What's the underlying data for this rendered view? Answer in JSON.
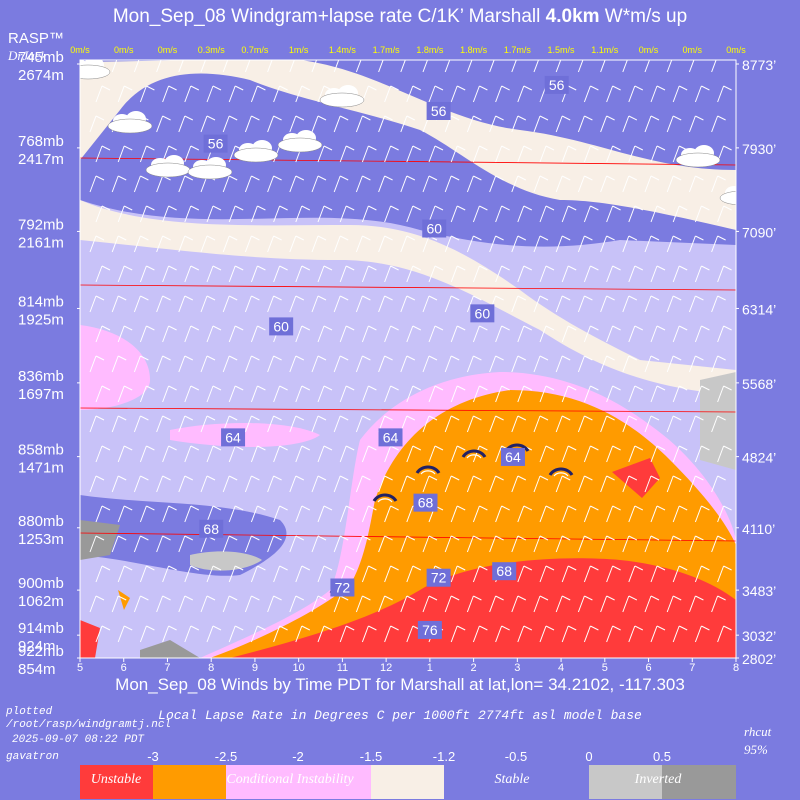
{
  "header": {
    "title_prefix": "Mon_Sep_08 Windgram+lapse rate C/1K’  Marshall ",
    "title_alt": "4.0km",
    "title_suffix": "  W*m/s up",
    "brand": "RASP™",
    "author": "DrJack"
  },
  "footer": {
    "x_caption": "Mon_Sep_08 Winds by Time PDT for Marshall at lat,lon= 34.2102, -117.303",
    "subtitle": "Local Lapse Rate in Degrees C per 1000ft  2774ft asl model base",
    "plotted": "plotted",
    "path": "/root/rasp/windgramtj.ncl",
    "timestamp": "2025-09-07 08:22 PDT",
    "user": "gavatron",
    "rh_label": "rhcut",
    "rh_value": "95%"
  },
  "colors": {
    "background": "#7b7be0",
    "unstable": "#ff3b3b",
    "conditional": "#ff9b00",
    "weak_instability": "#ffbbff",
    "near_neutral": "#f8efe6",
    "stable_light": "#c8c2f8",
    "stable": "#7b7be0",
    "inverted_light": "#c8c8c8",
    "inverted": "#999999",
    "isotherm_label_bg": "#6f6fd8",
    "updraft_text": "#ffff00"
  },
  "chart_data": {
    "type": "heatmap",
    "x_label": "Mon_Sep_08 Winds by Time PDT for Marshall at lat,lon= 34.2102, -117.303",
    "x_ticks": [
      "5",
      "6",
      "7",
      "8",
      "9",
      "10",
      "11",
      "12",
      "1",
      "2",
      "3",
      "4",
      "5",
      "6",
      "7",
      "8"
    ],
    "updraft_labels": [
      "0m/s",
      "0m/s",
      "0m/s",
      "0.3m/s",
      "0.7m/s",
      "1m/s",
      "1.4m/s",
      "1.7m/s",
      "1.8m/s",
      "1.8m/s",
      "1.7m/s",
      "1.5m/s",
      "1.1m/s",
      "0m/s",
      "0m/s",
      "0m/s"
    ],
    "updraft_values": [
      0,
      0,
      0,
      0.3,
      0.7,
      1,
      1.4,
      1.7,
      1.8,
      1.8,
      1.7,
      1.5,
      1.1,
      0,
      0,
      0
    ],
    "left_axis": [
      {
        "mb": "745mb",
        "m": "2674m"
      },
      {
        "mb": "768mb",
        "m": "2417m"
      },
      {
        "mb": "792mb",
        "m": "2161m"
      },
      {
        "mb": "814mb",
        "m": "1925m"
      },
      {
        "mb": "836mb",
        "m": "1697m"
      },
      {
        "mb": "858mb",
        "m": "1471m"
      },
      {
        "mb": "880mb",
        "m": "1253m"
      },
      {
        "mb": "900mb",
        "m": "1062m"
      },
      {
        "mb": "914mb",
        "m": "924m"
      },
      {
        "mb": "922mb",
        "m": "854m"
      }
    ],
    "right_axis": [
      "8773’",
      "7930’",
      "7090’",
      "6314’",
      "5568’",
      "4824’",
      "4110’",
      "3483’",
      "3032’",
      "2802’"
    ],
    "temperature_labels": [
      {
        "label": "56",
        "time": 15.9,
        "alt_m": 2610
      },
      {
        "label": "56",
        "time": 8.1,
        "alt_m": 2430
      },
      {
        "label": "56",
        "time": 13.2,
        "alt_m": 2530
      },
      {
        "label": "60",
        "time": 13.1,
        "alt_m": 2170
      },
      {
        "label": "60",
        "time": 14.2,
        "alt_m": 1910
      },
      {
        "label": "60",
        "time": 9.6,
        "alt_m": 1870
      },
      {
        "label": "64",
        "time": 8.5,
        "alt_m": 1530
      },
      {
        "label": "64",
        "time": 12.1,
        "alt_m": 1530
      },
      {
        "label": "64",
        "time": 14.9,
        "alt_m": 1470
      },
      {
        "label": "68",
        "time": 12.9,
        "alt_m": 1330
      },
      {
        "label": "68",
        "time": 8.0,
        "alt_m": 1250
      },
      {
        "label": "68",
        "time": 14.7,
        "alt_m": 1120
      },
      {
        "label": "72",
        "time": 11.0,
        "alt_m": 1070
      },
      {
        "label": "72",
        "time": 13.2,
        "alt_m": 1100
      },
      {
        "label": "76",
        "time": 13.0,
        "alt_m": 940
      }
    ],
    "legend": {
      "ticks": [
        "-3",
        "-2.5",
        "-2",
        "-1.5",
        "-1.2",
        "-0.5",
        "0",
        "0.5"
      ],
      "categories": [
        "Unstable",
        "Conditional Instability",
        "Stable",
        "Inverted"
      ]
    }
  }
}
